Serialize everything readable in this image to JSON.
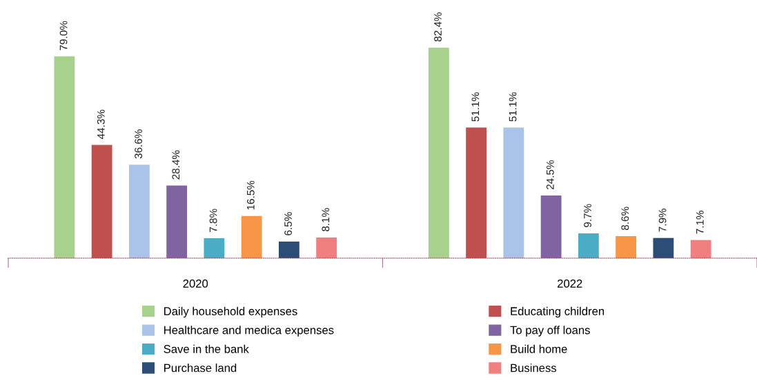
{
  "chart_data": {
    "type": "bar",
    "categories": [
      "2020",
      "2022"
    ],
    "series": [
      {
        "name": "Daily household expenses",
        "color": "#a9d18e",
        "values": [
          79.0,
          82.4
        ],
        "value_labels": [
          "79.0%",
          "82.4%"
        ]
      },
      {
        "name": "Educating children",
        "color": "#c0504d",
        "values": [
          44.3,
          51.1
        ],
        "value_labels": [
          "44.3%",
          "51.1%"
        ]
      },
      {
        "name": "Healthcare and medica expenses",
        "color": "#a9c4e8",
        "values": [
          36.6,
          51.1
        ],
        "value_labels": [
          "36.6%",
          "51.1%"
        ]
      },
      {
        "name": "To pay off loans",
        "color": "#8064a2",
        "values": [
          28.4,
          24.5
        ],
        "value_labels": [
          "28.4%",
          "24.5%"
        ]
      },
      {
        "name": "Save in the bank",
        "color": "#4bacc6",
        "values": [
          7.8,
          9.7
        ],
        "value_labels": [
          "7.8%",
          "9.7%"
        ]
      },
      {
        "name": "Build home",
        "color": "#f79646",
        "values": [
          16.5,
          8.6
        ],
        "value_labels": [
          "16.5%",
          "8.6%"
        ]
      },
      {
        "name": "Purchase land",
        "color": "#2c4d75",
        "values": [
          6.5,
          7.9
        ],
        "value_labels": [
          "6.5%",
          "7.9%"
        ]
      },
      {
        "name": "Business",
        "color": "#f07f7f",
        "values": [
          8.1,
          7.1
        ],
        "value_labels": [
          "8.1%",
          "7.1%"
        ]
      }
    ],
    "legend": "bottom"
  }
}
